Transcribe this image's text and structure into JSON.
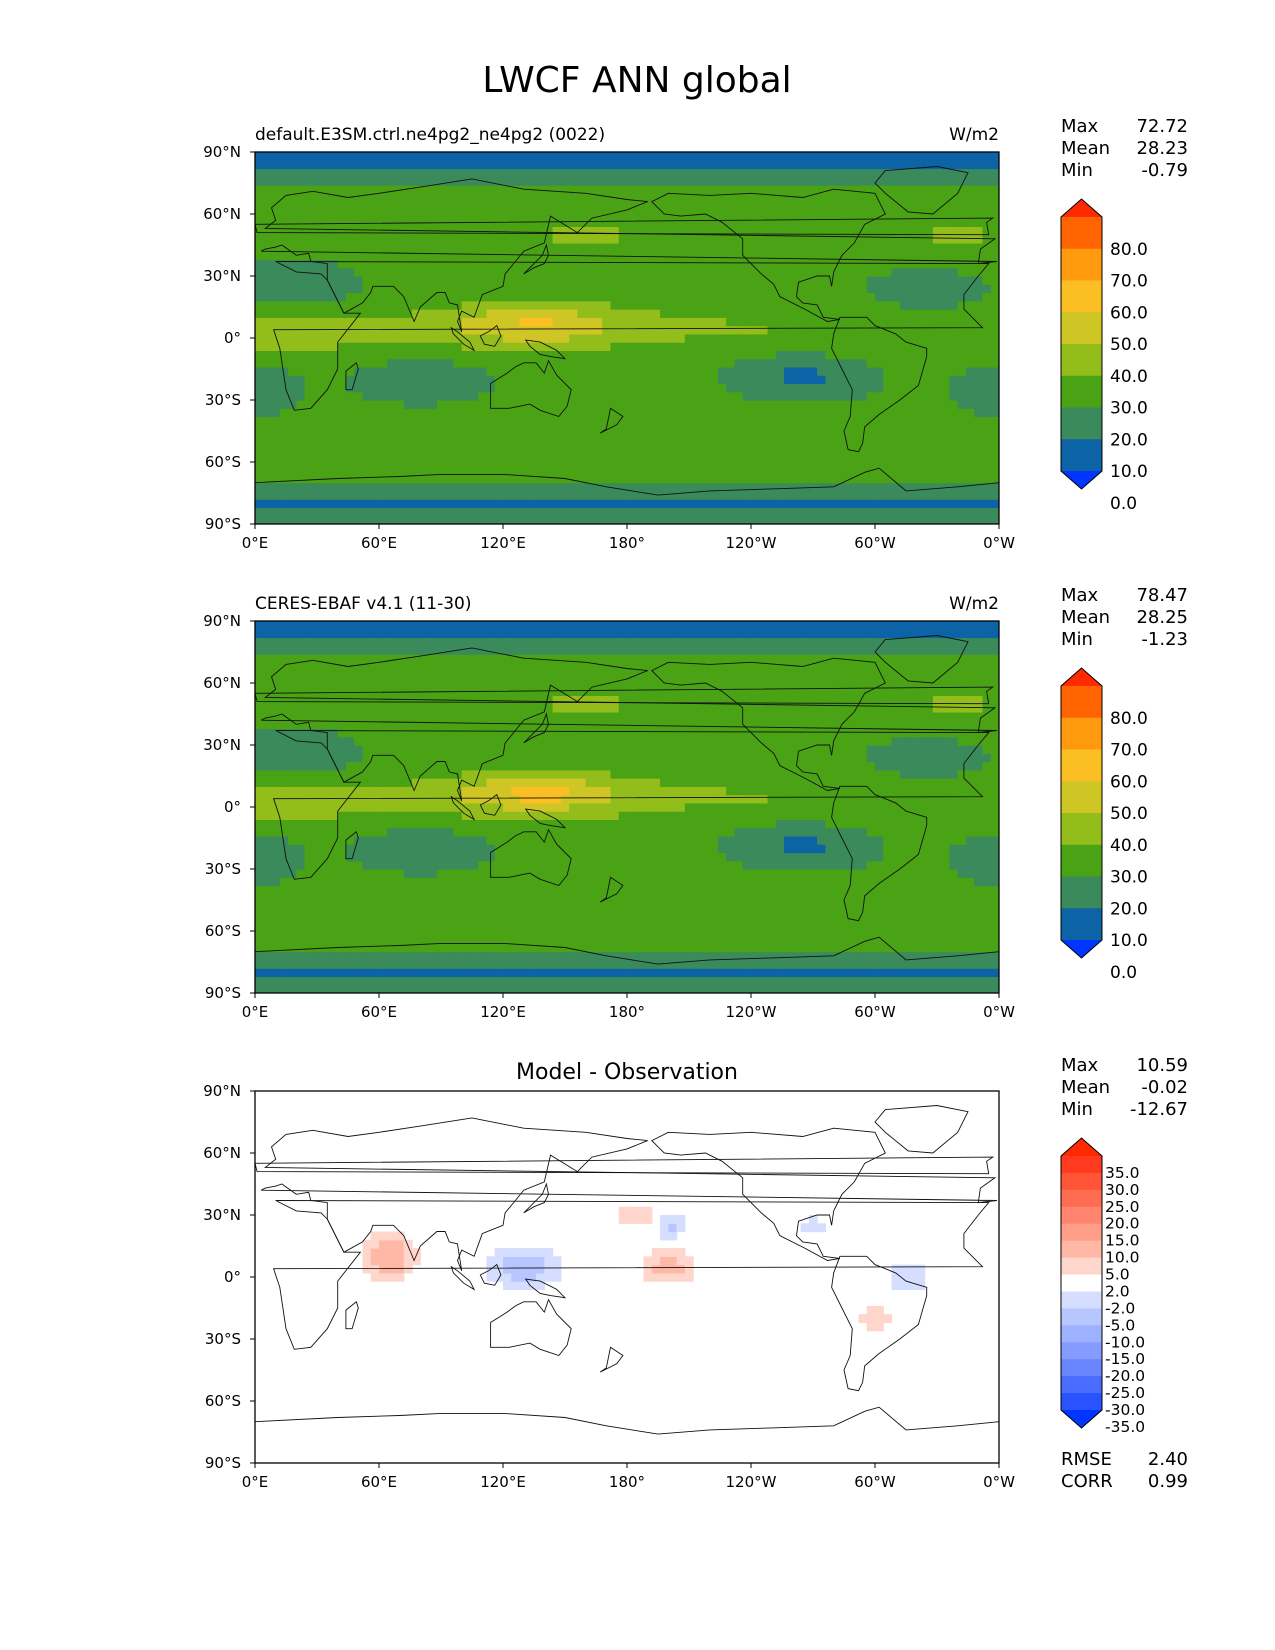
{
  "figure": {
    "title": "LWCF ANN global"
  },
  "chart_data": [
    {
      "type": "heatmap",
      "title": "default.E3SM.ctrl.ne4pg2_ne4pg2 (0022)",
      "units": "W/m2",
      "stats": [
        {
          "label": "Max",
          "value": "72.72"
        },
        {
          "label": "Mean",
          "value": "28.23"
        },
        {
          "label": "Min",
          "value": "-0.79"
        }
      ],
      "x_ticks": [
        "0°E",
        "60°E",
        "120°E",
        "180°",
        "120°W",
        "60°W",
        "0°W"
      ],
      "y_ticks": [
        "90°N",
        "60°N",
        "30°N",
        "0°",
        "30°S",
        "60°S",
        "90°S"
      ],
      "xlim": [
        0,
        360
      ],
      "ylim": [
        -90,
        90
      ],
      "colorbar": {
        "levels": [
          "80.0",
          "70.0",
          "60.0",
          "50.0",
          "40.0",
          "30.0",
          "20.0",
          "10.0",
          "0.0"
        ],
        "colors": [
          "#ff2a00",
          "#ff6400",
          "#ff9a0f",
          "#fbbf24",
          "#cfc626",
          "#93bd1b",
          "#4aa315",
          "#3a8a5c",
          "#0c63a5",
          "#0036ff"
        ]
      }
    },
    {
      "type": "heatmap",
      "title": "CERES-EBAF v4.1 (11-30)",
      "units": "W/m2",
      "stats": [
        {
          "label": "Max",
          "value": "78.47"
        },
        {
          "label": "Mean",
          "value": "28.25"
        },
        {
          "label": "Min",
          "value": "-1.23"
        }
      ],
      "x_ticks": [
        "0°E",
        "60°E",
        "120°E",
        "180°",
        "120°W",
        "60°W",
        "0°W"
      ],
      "y_ticks": [
        "90°N",
        "60°N",
        "30°N",
        "0°",
        "30°S",
        "60°S",
        "90°S"
      ],
      "xlim": [
        0,
        360
      ],
      "ylim": [
        -90,
        90
      ],
      "colorbar": {
        "levels": [
          "80.0",
          "70.0",
          "60.0",
          "50.0",
          "40.0",
          "30.0",
          "20.0",
          "10.0",
          "0.0"
        ],
        "colors": [
          "#ff2a00",
          "#ff6400",
          "#ff9a0f",
          "#fbbf24",
          "#cfc626",
          "#93bd1b",
          "#4aa315",
          "#3a8a5c",
          "#0c63a5",
          "#0036ff"
        ]
      }
    },
    {
      "type": "heatmap",
      "title": "Model - Observation",
      "units": "",
      "stats": [
        {
          "label": "Max",
          "value": "10.59"
        },
        {
          "label": "Mean",
          "value": "-0.02"
        },
        {
          "label": "Min",
          "value": "-12.67"
        }
      ],
      "metrics": [
        {
          "label": "RMSE",
          "value": "2.40"
        },
        {
          "label": "CORR",
          "value": "0.99"
        }
      ],
      "x_ticks": [
        "0°E",
        "60°E",
        "120°E",
        "180°",
        "120°W",
        "60°W",
        "0°W"
      ],
      "y_ticks": [
        "90°N",
        "60°N",
        "30°N",
        "0°",
        "30°S",
        "60°S",
        "90°S"
      ],
      "xlim": [
        0,
        360
      ],
      "ylim": [
        -90,
        90
      ],
      "colorbar": {
        "levels": [
          "35.0",
          "30.0",
          "25.0",
          "20.0",
          "15.0",
          "10.0",
          "5.0",
          "2.0",
          "-2.0",
          "-5.0",
          "-10.0",
          "-15.0",
          "-20.0",
          "-25.0",
          "-30.0",
          "-35.0"
        ],
        "colors": [
          "#ff2a00",
          "#ff3a1e",
          "#ff5436",
          "#ff6c52",
          "#ff856e",
          "#ff9f8a",
          "#ffb8a6",
          "#ffd6cc",
          "#ffffff",
          "#d6deff",
          "#b8c6ff",
          "#9eb1ff",
          "#849cff",
          "#6a86ff",
          "#4a6cff",
          "#2a52ff",
          "#0036ff"
        ]
      }
    }
  ]
}
